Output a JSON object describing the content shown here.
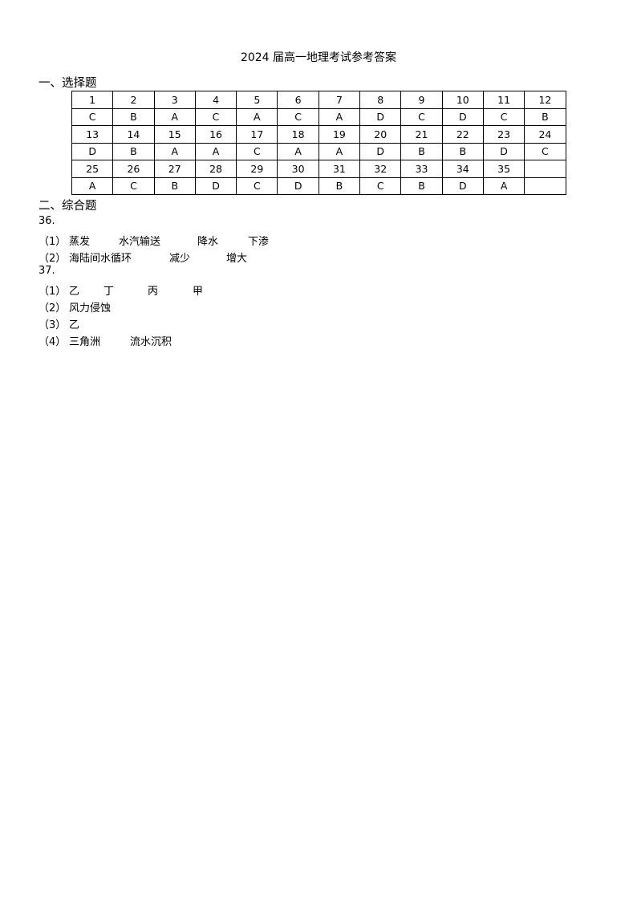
{
  "title": "2024 届高一地理考试参考答案",
  "section1": {
    "heading": "一、选择题",
    "rows": [
      [
        "1",
        "2",
        "3",
        "4",
        "5",
        "6",
        "7",
        "8",
        "9",
        "10",
        "11",
        "12"
      ],
      [
        "C",
        "B",
        "A",
        "C",
        "A",
        "C",
        "A",
        "D",
        "C",
        "D",
        "C",
        "B"
      ],
      [
        "13",
        "14",
        "15",
        "16",
        "17",
        "18",
        "19",
        "20",
        "21",
        "22",
        "23",
        "24"
      ],
      [
        "D",
        "B",
        "A",
        "A",
        "C",
        "A",
        "A",
        "D",
        "B",
        "B",
        "D",
        "C"
      ],
      [
        "25",
        "26",
        "27",
        "28",
        "29",
        "30",
        "31",
        "32",
        "33",
        "34",
        "35",
        ""
      ],
      [
        "A",
        "C",
        "B",
        "D",
        "C",
        "D",
        "B",
        "C",
        "B",
        "D",
        "A",
        ""
      ]
    ]
  },
  "section2": {
    "heading": "二、综合题",
    "q36": {
      "number": "36.",
      "p1": {
        "label": "（1）",
        "answers": [
          "蒸发",
          "水汽输送",
          "降水",
          "下渗"
        ]
      },
      "p2": {
        "label": "（2）",
        "answers": [
          "海陆间水循环",
          "减少",
          "增大"
        ]
      }
    },
    "q37": {
      "number": "37.",
      "p1": {
        "label": "（1）",
        "answers": [
          "乙",
          "丁",
          "丙",
          "甲"
        ]
      },
      "p2": {
        "label": "（2）",
        "answers": [
          "风力侵蚀"
        ]
      },
      "p3": {
        "label": "（3）",
        "answers": [
          "乙"
        ]
      },
      "p4": {
        "label": "（4）",
        "answers": [
          "三角洲",
          "流水沉积"
        ]
      }
    }
  }
}
